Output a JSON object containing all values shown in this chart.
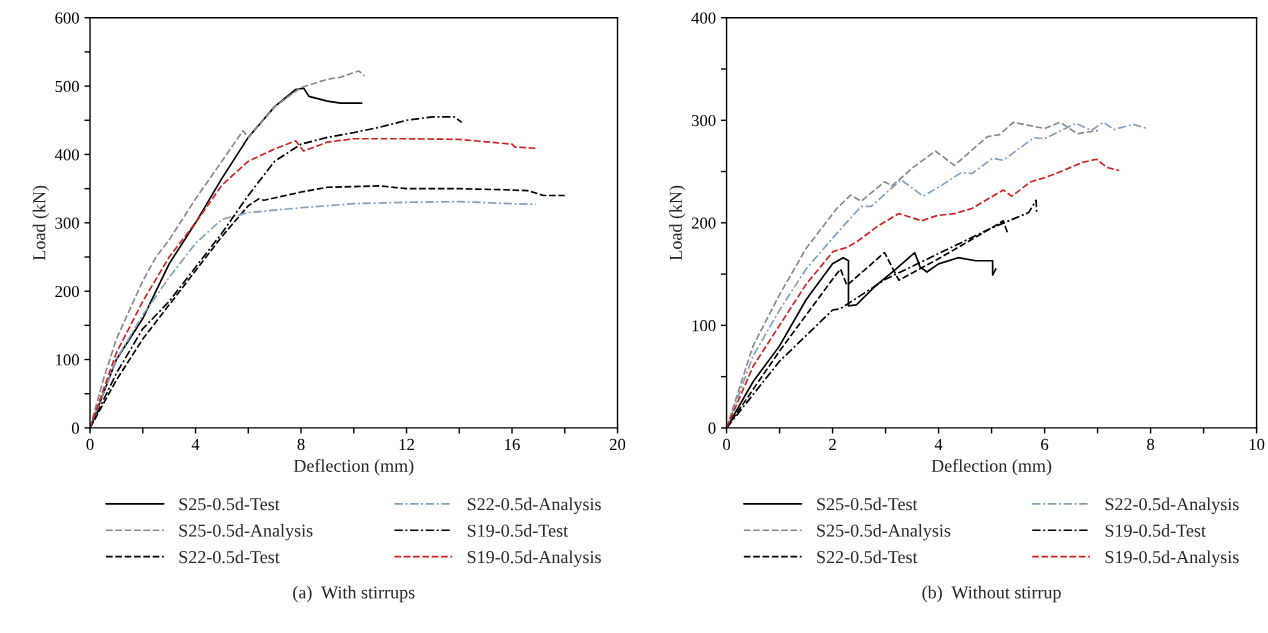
{
  "chart_data": [
    {
      "type": "line",
      "xlabel": "Deflection (mm)",
      "ylabel": "Load (kN)",
      "xlim": [
        0,
        20
      ],
      "ylim": [
        0,
        600
      ],
      "xticks": [
        0,
        {
          "value": 2,
          "label": null
        },
        4,
        {
          "value": 6,
          "label": null
        },
        8,
        {
          "value": 10,
          "label": null
        },
        12,
        {
          "value": 14,
          "label": null
        },
        16,
        {
          "value": 18,
          "label": null
        },
        20
      ],
      "yticks": [
        0,
        {
          "value": 50,
          "label": null
        },
        100,
        {
          "value": 150,
          "label": null
        },
        200,
        {
          "value": 250,
          "label": null
        },
        300,
        {
          "value": 350,
          "label": null
        },
        400,
        {
          "value": 450,
          "label": null
        },
        500,
        {
          "value": 550,
          "label": null
        },
        600
      ],
      "grid": false,
      "legend": "bottom",
      "annotations": [
        "(a)  With stirrups"
      ],
      "series": [
        {
          "name": "S25-0.5d-Test",
          "color": "#000000",
          "line_style": "solid",
          "x": [
            0,
            0.5,
            1,
            2,
            2.5,
            3,
            4,
            5,
            6,
            7,
            7.8,
            8.1,
            8.3,
            9,
            9.5,
            10.3
          ],
          "values": [
            0,
            50,
            100,
            160,
            200,
            240,
            300,
            365,
            425,
            470,
            495,
            497,
            485,
            478,
            475,
            475
          ]
        },
        {
          "name": "S25-0.5d-Analysis",
          "color": "#888888",
          "line_style": "dashed",
          "x": [
            0,
            0.5,
            1,
            2,
            2.5,
            3,
            4,
            5,
            5.8,
            6,
            7,
            8,
            9,
            9.5,
            10,
            10.2,
            10.4
          ],
          "values": [
            0,
            70,
            130,
            215,
            250,
            275,
            335,
            390,
            435,
            425,
            470,
            498,
            510,
            513,
            520,
            522,
            515
          ]
        },
        {
          "name": "S22-0.5d-Test",
          "color": "#000000",
          "line_style": "dashed",
          "x": [
            0,
            1,
            2,
            3,
            4,
            5,
            6,
            6.4,
            6.6,
            8,
            9,
            11,
            12,
            13,
            14,
            16,
            16.6,
            17.2,
            18
          ],
          "values": [
            0,
            70,
            130,
            180,
            230,
            280,
            325,
            335,
            333,
            345,
            352,
            354,
            350,
            350,
            350,
            348,
            347,
            340,
            340
          ]
        },
        {
          "name": "S22-0.5d-Analysis",
          "color": "#7f9fc0",
          "line_style": "dashdot",
          "x": [
            0,
            1,
            2,
            3,
            4,
            5,
            6,
            8,
            10,
            12,
            14,
            16,
            16.9
          ],
          "values": [
            0,
            100,
            165,
            220,
            270,
            305,
            315,
            322,
            328,
            330,
            331,
            328,
            327
          ]
        },
        {
          "name": "S19-0.5d-Test",
          "color": "#000000",
          "line_style": "dashdot",
          "x": [
            0,
            1,
            2,
            3,
            4,
            5,
            6,
            7,
            8,
            9,
            10,
            11,
            12,
            13,
            13.8,
            14.1
          ],
          "values": [
            0,
            80,
            145,
            185,
            235,
            285,
            340,
            390,
            415,
            425,
            432,
            440,
            450,
            455,
            455,
            447
          ]
        },
        {
          "name": "S19-0.5d-Analysis",
          "color": "#cc2222",
          "line_style": "dashed",
          "x": [
            0,
            0.5,
            1,
            2,
            3,
            4,
            5,
            6,
            7,
            7.8,
            8.1,
            9,
            10,
            12,
            14,
            16,
            16.1,
            16.9
          ],
          "values": [
            0,
            55,
            110,
            185,
            250,
            300,
            355,
            390,
            408,
            420,
            405,
            418,
            423,
            423,
            422,
            415,
            411,
            409
          ]
        }
      ]
    },
    {
      "type": "line",
      "xlabel": "Deflection (mm)",
      "ylabel": "Load (kN)",
      "xlim": [
        0,
        10
      ],
      "ylim": [
        0,
        400
      ],
      "xticks": [
        0,
        {
          "value": 1,
          "label": null
        },
        2,
        {
          "value": 3,
          "label": null
        },
        4,
        {
          "value": 5,
          "label": null
        },
        6,
        {
          "value": 7,
          "label": null
        },
        8,
        {
          "value": 9,
          "label": null
        },
        10
      ],
      "yticks": [
        0,
        {
          "value": 50,
          "label": null
        },
        100,
        {
          "value": 150,
          "label": null
        },
        200,
        {
          "value": 250,
          "label": null
        },
        300,
        {
          "value": 350,
          "label": null
        },
        400
      ],
      "grid": false,
      "legend": "bottom",
      "annotations": [
        "(b)  Without stirrup"
      ],
      "series": [
        {
          "name": "S25-0.5d-Test",
          "color": "#000000",
          "line_style": "solid",
          "x": [
            0,
            0.5,
            1,
            1.5,
            2,
            2.2,
            2.3,
            2.3,
            2.45,
            2.8,
            3.2,
            3.55,
            3.65,
            3.78,
            4.0,
            4.37,
            4.7,
            5.02,
            5.02,
            5.08
          ],
          "values": [
            0,
            45,
            80,
            125,
            160,
            166,
            163,
            119,
            120,
            138,
            155,
            171,
            157,
            152,
            160,
            166,
            163,
            163,
            149,
            155
          ]
        },
        {
          "name": "S25-0.5d-Analysis",
          "color": "#888888",
          "line_style": "dashed",
          "x": [
            0,
            0.5,
            1,
            1.5,
            2.08,
            2.34,
            2.54,
            2.98,
            3.12,
            3.52,
            3.94,
            4.3,
            4.92,
            5.15,
            5.41,
            6.0,
            6.29,
            6.62,
            7.01
          ],
          "values": [
            0,
            80,
            130,
            175,
            214,
            227,
            221,
            240,
            236,
            254,
            270,
            256,
            284,
            286,
            298,
            292,
            298,
            287,
            290
          ]
        },
        {
          "name": "S22-0.5d-Test",
          "color": "#000000",
          "line_style": "dashed",
          "x": [
            0,
            1,
            2,
            2.15,
            2.27,
            2.98,
            3.25,
            4,
            5,
            5.22,
            5.31
          ],
          "values": [
            0,
            75,
            145,
            155,
            139,
            171,
            144,
            165,
            195,
            202,
            189
          ]
        },
        {
          "name": "S22-0.5d-Analysis",
          "color": "#7f9fc0",
          "line_style": "dashdot",
          "x": [
            0,
            0.5,
            1,
            1.5,
            2,
            2.24,
            2.54,
            2.73,
            3.29,
            3.71,
            4.04,
            4.43,
            4.63,
            5.02,
            5.22,
            5.8,
            6.0,
            6.59,
            6.88,
            7.11,
            7.31,
            7.67,
            7.93
          ],
          "values": [
            0,
            70,
            115,
            155,
            185,
            199,
            216,
            216,
            242,
            226,
            236,
            249,
            248,
            263,
            261,
            283,
            282,
            297,
            290,
            298,
            291,
            296,
            292
          ]
        },
        {
          "name": "S19-0.5d-Test",
          "color": "#000000",
          "line_style": "dashdot",
          "x": [
            0,
            1,
            2,
            2.14,
            3,
            4,
            5,
            5.7,
            5.84,
            5.85
          ],
          "values": [
            0,
            65,
            115,
            116,
            145,
            170,
            195,
            210,
            222,
            210
          ]
        },
        {
          "name": "S19-0.5d-Analysis",
          "color": "#cc2222",
          "line_style": "dashed",
          "x": [
            0,
            0.5,
            1,
            1.5,
            2.01,
            2.27,
            2.47,
            2.86,
            3.25,
            3.68,
            3.97,
            4.3,
            4.63,
            5.22,
            5.38,
            5.74,
            6.0,
            6.26,
            6.72,
            6.98,
            7.18,
            7.41
          ],
          "values": [
            0,
            60,
            100,
            140,
            172,
            176,
            182,
            197,
            209,
            202,
            207,
            209,
            214,
            232,
            226,
            240,
            244,
            249,
            259,
            262,
            254,
            251
          ]
        }
      ]
    }
  ]
}
